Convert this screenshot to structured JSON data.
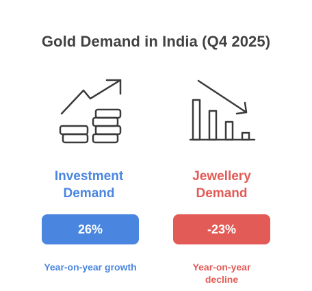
{
  "title": "Gold Demand in India (Q4 2025)",
  "colors": {
    "investment": "#4a86e0",
    "jewellery": "#e35b56",
    "title": "#424242",
    "icon_stroke": "#3a3a3a"
  },
  "investment": {
    "heading_line1": "Investment",
    "heading_line2": "Demand",
    "value": "26%",
    "caption": "Year-on-year growth",
    "icon": "coins-trend-up-icon"
  },
  "jewellery": {
    "heading_line1": "Jewellery",
    "heading_line2": "Demand",
    "value": "-23%",
    "caption_line1": "Year-on-year",
    "caption_line2": "decline",
    "icon": "bar-chart-trend-down-icon"
  }
}
